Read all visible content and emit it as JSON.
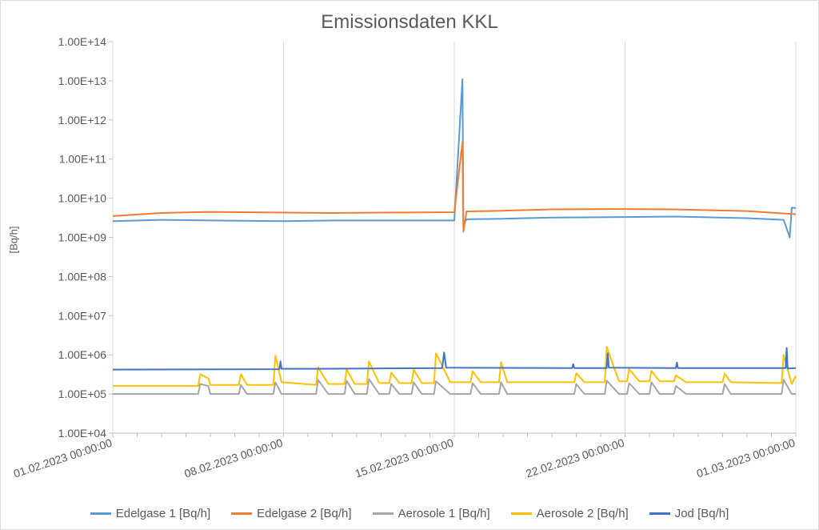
{
  "chart_data": {
    "type": "line",
    "title": "Emissionsdaten KKL",
    "xlabel": "",
    "ylabel": "[Bq/h]",
    "yscale": "log",
    "ylim": [
      10000,
      100000000000000
    ],
    "xlim": [
      "01.02.2023 00:00:00",
      "01.03.2023 00:00:00"
    ],
    "x_tick_labels": [
      "01.02.2023 00:00:00",
      "08.02.2023 00:00:00",
      "15.02.2023 00:00:00",
      "22.02.2023 00:00:00",
      "01.03.2023 00:00:00"
    ],
    "y_tick_labels": [
      "1.00E+04",
      "1.00E+05",
      "1.00E+06",
      "1.00E+07",
      "1.00E+08",
      "1.00E+09",
      "1.00E+10",
      "1.00E+11",
      "1.00E+12",
      "1.00E+13",
      "1.00E+14"
    ],
    "grid": "vertical",
    "legend_position": "bottom",
    "series": [
      {
        "name": "Edelgase 1 [Bq/h]",
        "color": "#5b9bd5",
        "points": [
          [
            "01.02.2023 00:00",
            2600000000
          ],
          [
            "03.02.2023 00:00",
            2800000000
          ],
          [
            "05.02.2023 00:00",
            2700000000
          ],
          [
            "08.02.2023 00:00",
            2600000000
          ],
          [
            "10.02.2023 00:00",
            2700000000
          ],
          [
            "12.02.2023 00:00",
            2700000000
          ],
          [
            "15.02.2023 00:00",
            2700000000
          ],
          [
            "15.02.2023 08:00",
            11000000000000
          ],
          [
            "15.02.2023 09:00",
            2000000000
          ],
          [
            "15.02.2023 12:00",
            2900000000
          ],
          [
            "17.02.2023 00:00",
            3000000000
          ],
          [
            "19.02.2023 00:00",
            3200000000
          ],
          [
            "22.02.2023 00:00",
            3300000000
          ],
          [
            "24.02.2023 00:00",
            3400000000
          ],
          [
            "27.02.2023 00:00",
            3100000000
          ],
          [
            "28.02.2023 12:00",
            2800000000
          ],
          [
            "28.02.2023 18:00",
            1000000000
          ],
          [
            "28.02.2023 20:00",
            5700000000
          ],
          [
            "01.03.2023 00:00",
            5600000000
          ]
        ]
      },
      {
        "name": "Edelgase 2 [Bq/h]",
        "color": "#ed7d31",
        "points": [
          [
            "01.02.2023 00:00",
            3500000000
          ],
          [
            "03.02.2023 00:00",
            4200000000
          ],
          [
            "05.02.2023 00:00",
            4500000000
          ],
          [
            "08.02.2023 00:00",
            4300000000
          ],
          [
            "10.02.2023 00:00",
            4200000000
          ],
          [
            "12.02.2023 00:00",
            4300000000
          ],
          [
            "15.02.2023 00:00",
            4400000000
          ],
          [
            "15.02.2023 08:00",
            270000000000
          ],
          [
            "15.02.2023 09:00",
            1400000000
          ],
          [
            "15.02.2023 12:00",
            4600000000
          ],
          [
            "17.02.2023 00:00",
            4800000000
          ],
          [
            "19.02.2023 00:00",
            5200000000
          ],
          [
            "22.02.2023 00:00",
            5300000000
          ],
          [
            "24.02.2023 00:00",
            5200000000
          ],
          [
            "27.02.2023 00:00",
            4700000000
          ],
          [
            "01.03.2023 00:00",
            3900000000
          ]
        ]
      },
      {
        "name": "Aerosole 1 [Bq/h]",
        "color": "#a5a5a5",
        "points": [
          [
            "01.02.2023 00:00",
            100000
          ],
          [
            "04.02.2023 12:00",
            100000
          ],
          [
            "04.02.2023 14:00",
            180000
          ],
          [
            "04.02.2023 22:00",
            160000
          ],
          [
            "05.02.2023 00:00",
            100000
          ],
          [
            "06.02.2023 04:00",
            100000
          ],
          [
            "06.02.2023 06:00",
            170000
          ],
          [
            "06.02.2023 12:00",
            100000
          ],
          [
            "07.02.2023 14:00",
            100000
          ],
          [
            "07.02.2023 16:00",
            200000
          ],
          [
            "07.02.2023 22:00",
            100000
          ],
          [
            "09.02.2023 08:00",
            100000
          ],
          [
            "09.02.2023 10:00",
            230000
          ],
          [
            "09.02.2023 20:00",
            100000
          ],
          [
            "10.02.2023 12:00",
            100000
          ],
          [
            "10.02.2023 14:00",
            220000
          ],
          [
            "10.02.2023 22:00",
            100000
          ],
          [
            "11.02.2023 10:00",
            100000
          ],
          [
            "11.02.2023 12:00",
            240000
          ],
          [
            "11.02.2023 22:00",
            100000
          ],
          [
            "12.02.2023 08:00",
            100000
          ],
          [
            "12.02.2023 10:00",
            180000
          ],
          [
            "12.02.2023 18:00",
            100000
          ],
          [
            "13.02.2023 06:00",
            100000
          ],
          [
            "13.02.2023 08:00",
            200000
          ],
          [
            "13.02.2023 16:00",
            100000
          ],
          [
            "14.02.2023 04:00",
            100000
          ],
          [
            "14.02.2023 06:00",
            210000
          ],
          [
            "14.02.2023 20:00",
            100000
          ],
          [
            "15.02.2023 16:00",
            100000
          ],
          [
            "15.02.2023 18:00",
            190000
          ],
          [
            "16.02.2023 02:00",
            100000
          ],
          [
            "16.02.2023 20:00",
            100000
          ],
          [
            "16.02.2023 22:00",
            200000
          ],
          [
            "17.02.2023 04:00",
            100000
          ],
          [
            "19.02.2023 22:00",
            100000
          ],
          [
            "20.02.2023 00:00",
            180000
          ],
          [
            "20.02.2023 08:00",
            100000
          ],
          [
            "21.02.2023 04:00",
            100000
          ],
          [
            "21.02.2023 06:00",
            220000
          ],
          [
            "21.02.2023 18:00",
            100000
          ],
          [
            "22.02.2023 02:00",
            100000
          ],
          [
            "22.02.2023 04:00",
            190000
          ],
          [
            "22.02.2023 14:00",
            100000
          ],
          [
            "23.02.2023 00:00",
            100000
          ],
          [
            "23.02.2023 02:00",
            200000
          ],
          [
            "23.02.2023 10:00",
            100000
          ],
          [
            "24.02.2023 00:00",
            100000
          ],
          [
            "24.02.2023 02:00",
            160000
          ],
          [
            "24.02.2023 12:00",
            100000
          ],
          [
            "26.02.2023 00:00",
            100000
          ],
          [
            "26.02.2023 02:00",
            180000
          ],
          [
            "26.02.2023 08:00",
            100000
          ],
          [
            "28.02.2023 10:00",
            100000
          ],
          [
            "28.02.2023 12:00",
            230000
          ],
          [
            "28.02.2023 20:00",
            100000
          ],
          [
            "01.03.2023 00:00",
            100000
          ]
        ]
      },
      {
        "name": "Aerosole 2 [Bq/h]",
        "color": "#ffc000",
        "points": [
          [
            "01.02.2023 00:00",
            160000
          ],
          [
            "04.02.2023 12:00",
            160000
          ],
          [
            "04.02.2023 14:00",
            320000
          ],
          [
            "04.02.2023 22:00",
            250000
          ],
          [
            "05.02.2023 00:00",
            170000
          ],
          [
            "06.02.2023 04:00",
            170000
          ],
          [
            "06.02.2023 06:00",
            320000
          ],
          [
            "06.02.2023 12:00",
            170000
          ],
          [
            "07.02.2023 14:00",
            170000
          ],
          [
            "07.02.2023 16:00",
            950000
          ],
          [
            "07.02.2023 22:00",
            200000
          ],
          [
            "09.02.2023 08:00",
            170000
          ],
          [
            "09.02.2023 10:00",
            480000
          ],
          [
            "09.02.2023 20:00",
            180000
          ],
          [
            "10.02.2023 12:00",
            180000
          ],
          [
            "10.02.2023 14:00",
            420000
          ],
          [
            "10.02.2023 22:00",
            180000
          ],
          [
            "11.02.2023 10:00",
            180000
          ],
          [
            "11.02.2023 12:00",
            680000
          ],
          [
            "11.02.2023 22:00",
            190000
          ],
          [
            "12.02.2023 08:00",
            190000
          ],
          [
            "12.02.2023 10:00",
            350000
          ],
          [
            "12.02.2023 18:00",
            190000
          ],
          [
            "13.02.2023 06:00",
            190000
          ],
          [
            "13.02.2023 08:00",
            420000
          ],
          [
            "13.02.2023 16:00",
            190000
          ],
          [
            "14.02.2023 04:00",
            190000
          ],
          [
            "14.02.2023 06:00",
            1100000
          ],
          [
            "14.02.2023 20:00",
            200000
          ],
          [
            "15.02.2023 16:00",
            200000
          ],
          [
            "15.02.2023 18:00",
            380000
          ],
          [
            "16.02.2023 02:00",
            200000
          ],
          [
            "16.02.2023 20:00",
            200000
          ],
          [
            "16.02.2023 22:00",
            650000
          ],
          [
            "17.02.2023 04:00",
            200000
          ],
          [
            "19.02.2023 22:00",
            200000
          ],
          [
            "20.02.2023 00:00",
            340000
          ],
          [
            "20.02.2023 08:00",
            200000
          ],
          [
            "21.02.2023 04:00",
            200000
          ],
          [
            "21.02.2023 06:00",
            1600000
          ],
          [
            "21.02.2023 18:00",
            210000
          ],
          [
            "22.02.2023 02:00",
            210000
          ],
          [
            "22.02.2023 04:00",
            430000
          ],
          [
            "22.02.2023 14:00",
            210000
          ],
          [
            "23.02.2023 00:00",
            210000
          ],
          [
            "23.02.2023 02:00",
            390000
          ],
          [
            "23.02.2023 10:00",
            210000
          ],
          [
            "24.02.2023 00:00",
            210000
          ],
          [
            "24.02.2023 02:00",
            300000
          ],
          [
            "24.02.2023 12:00",
            200000
          ],
          [
            "26.02.2023 00:00",
            200000
          ],
          [
            "26.02.2023 02:00",
            330000
          ],
          [
            "26.02.2023 08:00",
            200000
          ],
          [
            "28.02.2023 10:00",
            190000
          ],
          [
            "28.02.2023 12:00",
            1000000
          ],
          [
            "28.02.2023 20:00",
            180000
          ],
          [
            "01.03.2023 00:00",
            290000
          ]
        ]
      },
      {
        "name": "Jod [Bq/h]",
        "color": "#4472c4",
        "points": [
          [
            "01.02.2023 00:00",
            420000
          ],
          [
            "07.02.2023 20:00",
            430000
          ],
          [
            "07.02.2023 21:00",
            680000
          ],
          [
            "07.02.2023 22:00",
            440000
          ],
          [
            "09.02.2023 12:00",
            440000
          ],
          [
            "14.02.2023 12:00",
            460000
          ],
          [
            "14.02.2023 14:00",
            1150000
          ],
          [
            "14.02.2023 16:00",
            470000
          ],
          [
            "19.02.2023 20:00",
            460000
          ],
          [
            "19.02.2023 21:00",
            580000
          ],
          [
            "19.02.2023 22:00",
            460000
          ],
          [
            "21.02.2023 06:00",
            460000
          ],
          [
            "21.02.2023 07:00",
            1100000
          ],
          [
            "21.02.2023 08:00",
            470000
          ],
          [
            "24.02.2023 02:00",
            460000
          ],
          [
            "24.02.2023 03:00",
            640000
          ],
          [
            "24.02.2023 04:00",
            460000
          ],
          [
            "28.02.2023 14:00",
            460000
          ],
          [
            "28.02.2023 15:00",
            1500000
          ],
          [
            "28.02.2023 16:00",
            450000
          ],
          [
            "01.03.2023 00:00",
            460000
          ]
        ]
      }
    ]
  }
}
